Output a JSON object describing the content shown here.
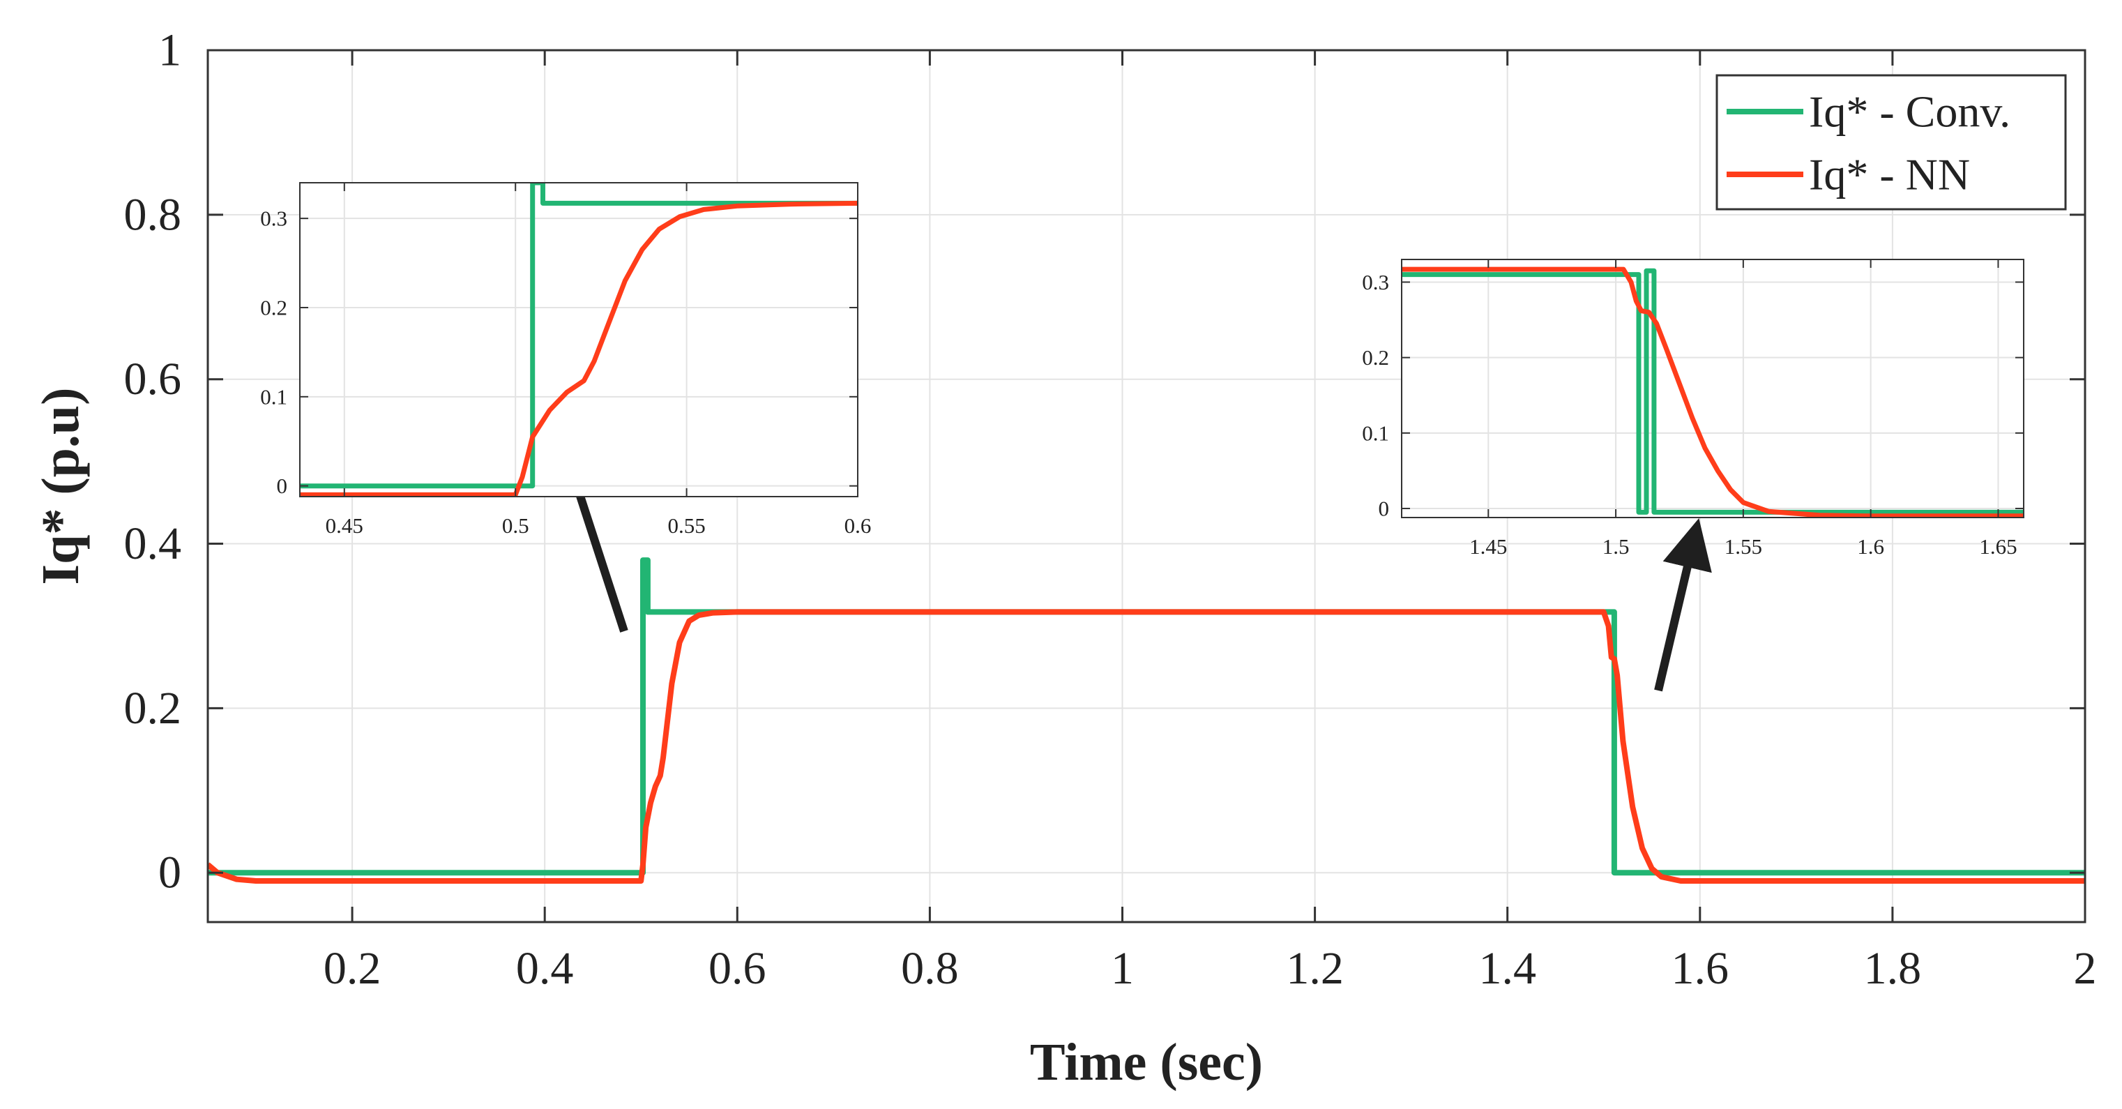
{
  "chart_data": [
    {
      "id": "main",
      "type": "line",
      "title": "",
      "xlabel": "Time (sec)",
      "ylabel": "Iq* (p.u)",
      "xlim": [
        0.05,
        2.0
      ],
      "ylim": [
        -0.06,
        1.0
      ],
      "xticks": [
        0.2,
        0.4,
        0.6,
        0.8,
        1,
        1.2,
        1.4,
        1.6,
        1.8,
        2
      ],
      "xtick_labels": [
        "0.2",
        "0.4",
        "0.6",
        "0.8",
        "1",
        "1.2",
        "1.4",
        "1.6",
        "1.8",
        "2"
      ],
      "yticks": [
        0,
        0.2,
        0.4,
        0.6,
        0.8,
        1
      ],
      "ytick_labels": [
        "0",
        "0.2",
        "0.4",
        "0.6",
        "0.8",
        "1"
      ],
      "grid": true,
      "legend_position": "top-right",
      "series": [
        {
          "name": "Iq* - Conv.",
          "color": "#22b573",
          "x": [
            0.05,
            0.502,
            0.502,
            0.507,
            0.507,
            1.509,
            1.509,
            1.511,
            1.511,
            2.0
          ],
          "y": [
            0.0,
            0.0,
            0.38,
            0.38,
            0.317,
            0.317,
            0.317,
            0.317,
            0.0,
            0.0
          ]
        },
        {
          "name": "Iq* - NN",
          "color": "#ff3d1a",
          "x": [
            0.05,
            0.06,
            0.08,
            0.1,
            0.5,
            0.502,
            0.505,
            0.51,
            0.515,
            0.52,
            0.523,
            0.527,
            0.532,
            0.54,
            0.55,
            0.56,
            0.575,
            0.6,
            1.5,
            1.505,
            1.508,
            1.511,
            1.514,
            1.52,
            1.53,
            1.54,
            1.55,
            1.56,
            1.58,
            1.6,
            2.0
          ],
          "y": [
            0.01,
            0.0,
            -0.008,
            -0.01,
            -0.01,
            0.01,
            0.055,
            0.085,
            0.105,
            0.118,
            0.14,
            0.18,
            0.23,
            0.28,
            0.306,
            0.313,
            0.316,
            0.317,
            0.317,
            0.3,
            0.262,
            0.26,
            0.24,
            0.16,
            0.08,
            0.03,
            0.005,
            -0.005,
            -0.01,
            -0.01,
            -0.01
          ]
        }
      ]
    },
    {
      "id": "inset-left",
      "type": "line",
      "title": "",
      "xlim": [
        0.437,
        0.6
      ],
      "ylim": [
        -0.012,
        0.34
      ],
      "xticks": [
        0.45,
        0.5,
        0.55,
        0.6
      ],
      "xtick_labels": [
        "0.45",
        "0.5",
        "0.55",
        "0.6"
      ],
      "yticks": [
        0,
        0.1,
        0.2,
        0.3
      ],
      "ytick_labels": [
        "0",
        "0.1",
        "0.2",
        "0.3"
      ],
      "grid": true,
      "series": [
        {
          "name": "Iq* - Conv.",
          "color": "#22b573",
          "x": [
            0.437,
            0.505,
            0.505,
            0.508,
            0.508,
            0.6
          ],
          "y": [
            0.0,
            0.0,
            0.34,
            0.34,
            0.317,
            0.317
          ]
        },
        {
          "name": "Iq* - NN",
          "color": "#ff3d1a",
          "x": [
            0.437,
            0.5,
            0.502,
            0.505,
            0.51,
            0.515,
            0.52,
            0.523,
            0.527,
            0.532,
            0.537,
            0.542,
            0.548,
            0.555,
            0.565,
            0.58,
            0.6
          ],
          "y": [
            -0.01,
            -0.01,
            0.01,
            0.055,
            0.085,
            0.105,
            0.118,
            0.14,
            0.18,
            0.23,
            0.265,
            0.288,
            0.302,
            0.31,
            0.314,
            0.316,
            0.317
          ]
        }
      ]
    },
    {
      "id": "inset-right",
      "type": "line",
      "title": "",
      "xlim": [
        1.416,
        1.66
      ],
      "ylim": [
        -0.012,
        0.33
      ],
      "xticks": [
        1.45,
        1.5,
        1.55,
        1.6,
        1.65
      ],
      "xtick_labels": [
        "1.45",
        "1.5",
        "1.55",
        "1.6",
        "1.65"
      ],
      "yticks": [
        0,
        0.1,
        0.2,
        0.3
      ],
      "ytick_labels": [
        "0",
        "0.1",
        "0.2",
        "0.3"
      ],
      "grid": true,
      "series": [
        {
          "name": "Iq* - Conv.",
          "color": "#22b573",
          "x": [
            1.416,
            1.509,
            1.509,
            1.512,
            1.512,
            1.515,
            1.515,
            1.66
          ],
          "y": [
            0.31,
            0.31,
            -0.005,
            -0.005,
            0.315,
            0.315,
            -0.005,
            -0.005
          ]
        },
        {
          "name": "Iq* - NN",
          "color": "#ff3d1a",
          "x": [
            1.416,
            1.503,
            1.506,
            1.508,
            1.51,
            1.513,
            1.516,
            1.52,
            1.525,
            1.53,
            1.535,
            1.54,
            1.545,
            1.55,
            1.56,
            1.58,
            1.6,
            1.66
          ],
          "y": [
            0.317,
            0.317,
            0.3,
            0.275,
            0.262,
            0.26,
            0.245,
            0.21,
            0.165,
            0.12,
            0.08,
            0.05,
            0.025,
            0.008,
            -0.004,
            -0.009,
            -0.01,
            -0.01
          ]
        }
      ]
    }
  ]
}
